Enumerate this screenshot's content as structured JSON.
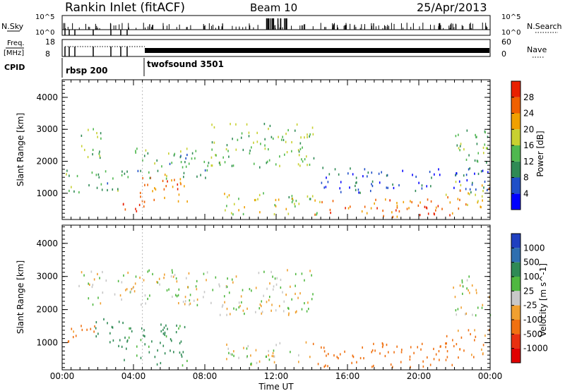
{
  "header": {
    "station": "Rankin Inlet (fitACF)",
    "beam": "Beam 10",
    "date": "25/Apr/2013"
  },
  "status_panels": {
    "nsky_label": "N.Sky",
    "nsky_ticks": [
      "10^5",
      "10^0"
    ],
    "nsearch_label": "N.Search",
    "nsearch_ticks": [
      "10^5",
      "10^0"
    ],
    "freq_label": "Freq.",
    "freq_unit": "[MHz]",
    "freq_ticks": [
      "18",
      "8"
    ],
    "nave_label": "Nave",
    "nave_ticks": [
      "60",
      "0"
    ],
    "cpid_label": "CPID",
    "cpid_modes": [
      {
        "name": "rbsp 200",
        "start_hour": 0.0,
        "end_hour": 4.5
      },
      {
        "name": "twofsound 3501",
        "start_hour": 4.5,
        "end_hour": 24.0
      }
    ]
  },
  "chart_data": [
    {
      "type": "heatmap",
      "title": "",
      "xlabel": "Time UT",
      "ylabel": "Slant Range [km]",
      "x_ticks": [
        "00:00",
        "04:00",
        "08:00",
        "12:00",
        "16:00",
        "20:00",
        "00:00"
      ],
      "xlim_hours": [
        0,
        24
      ],
      "ylim": [
        180,
        4550
      ],
      "y_ticks": [
        1000,
        2000,
        3000,
        4000
      ],
      "colorbar": {
        "label": "Power [dB]",
        "ticks": [
          "4",
          "8",
          "12",
          "16",
          "20",
          "24",
          "28"
        ],
        "range": [
          0,
          30
        ],
        "colors": [
          "#0000ff",
          "#1f4fc8",
          "#2f8a55",
          "#4fb84f",
          "#c8d030",
          "#f0a000",
          "#f06000",
          "#e82000"
        ]
      },
      "echo_regions": [
        {
          "t0": 0.9,
          "t1": 2.2,
          "r0": 2100,
          "r1": 3200,
          "value": 14
        },
        {
          "t0": 0.2,
          "t1": 3.8,
          "r0": 1000,
          "r1": 1700,
          "value": 12
        },
        {
          "t0": 3.0,
          "t1": 4.6,
          "r0": 300,
          "r1": 700,
          "value": 26
        },
        {
          "t0": 4.0,
          "t1": 7.0,
          "r0": 700,
          "r1": 1600,
          "value": 24
        },
        {
          "t0": 4.0,
          "t1": 8.2,
          "r0": 1400,
          "r1": 2400,
          "value": 12
        },
        {
          "t0": 8.3,
          "t1": 14.2,
          "r0": 1800,
          "r1": 3200,
          "value": 14
        },
        {
          "t0": 9.0,
          "t1": 14.5,
          "r0": 300,
          "r1": 1000,
          "value": 16
        },
        {
          "t0": 14.0,
          "t1": 22.0,
          "r0": 250,
          "r1": 800,
          "value": 24
        },
        {
          "t0": 14.5,
          "t1": 24.0,
          "r0": 1000,
          "r1": 1800,
          "value": 6
        },
        {
          "t0": 21.5,
          "t1": 24.0,
          "r0": 500,
          "r1": 1400,
          "value": 20
        },
        {
          "t0": 21.8,
          "t1": 24.0,
          "r0": 1800,
          "r1": 3000,
          "value": 12
        }
      ]
    },
    {
      "type": "heatmap",
      "title": "",
      "xlabel": "Time UT",
      "ylabel": "Slant Range [km]",
      "x_ticks": [
        "00:00",
        "04:00",
        "08:00",
        "12:00",
        "16:00",
        "20:00",
        "00:00"
      ],
      "xlim_hours": [
        0,
        24
      ],
      "ylim": [
        180,
        4550
      ],
      "y_ticks": [
        1000,
        2000,
        3000,
        4000
      ],
      "colorbar": {
        "label": "Velocity [m s^-1]",
        "ticks": [
          "1000",
          "500",
          "100",
          "25",
          "-25",
          "-100",
          "-500",
          "-1000"
        ],
        "colors": [
          "#2040c0",
          "#2f6fb0",
          "#2f8a55",
          "#50b840",
          "#c8c8c8",
          "#f0a030",
          "#f07010",
          "#e83010",
          "#e00000"
        ]
      },
      "echo_regions": [
        {
          "t0": 0.9,
          "t1": 8.2,
          "r0": 2100,
          "r1": 3200,
          "value": 0
        },
        {
          "t0": 8.3,
          "t1": 14.2,
          "r0": 1800,
          "r1": 3200,
          "value": 0
        },
        {
          "t0": 0.2,
          "t1": 1.8,
          "r0": 1000,
          "r1": 1700,
          "value": -150
        },
        {
          "t0": 1.8,
          "t1": 3.5,
          "r0": 1000,
          "r1": 1700,
          "value": 200
        },
        {
          "t0": 3.0,
          "t1": 7.0,
          "r0": 300,
          "r1": 1600,
          "value": 150
        },
        {
          "t0": 9.0,
          "t1": 14.0,
          "r0": 300,
          "r1": 1000,
          "value": 0
        },
        {
          "t0": 14.0,
          "t1": 22.0,
          "r0": 250,
          "r1": 1000,
          "value": -200
        },
        {
          "t0": 21.8,
          "t1": 24.0,
          "r0": 1800,
          "r1": 3000,
          "value": 0
        },
        {
          "t0": 21.5,
          "t1": 24.0,
          "r0": 500,
          "r1": 1400,
          "value": -150
        }
      ]
    }
  ]
}
